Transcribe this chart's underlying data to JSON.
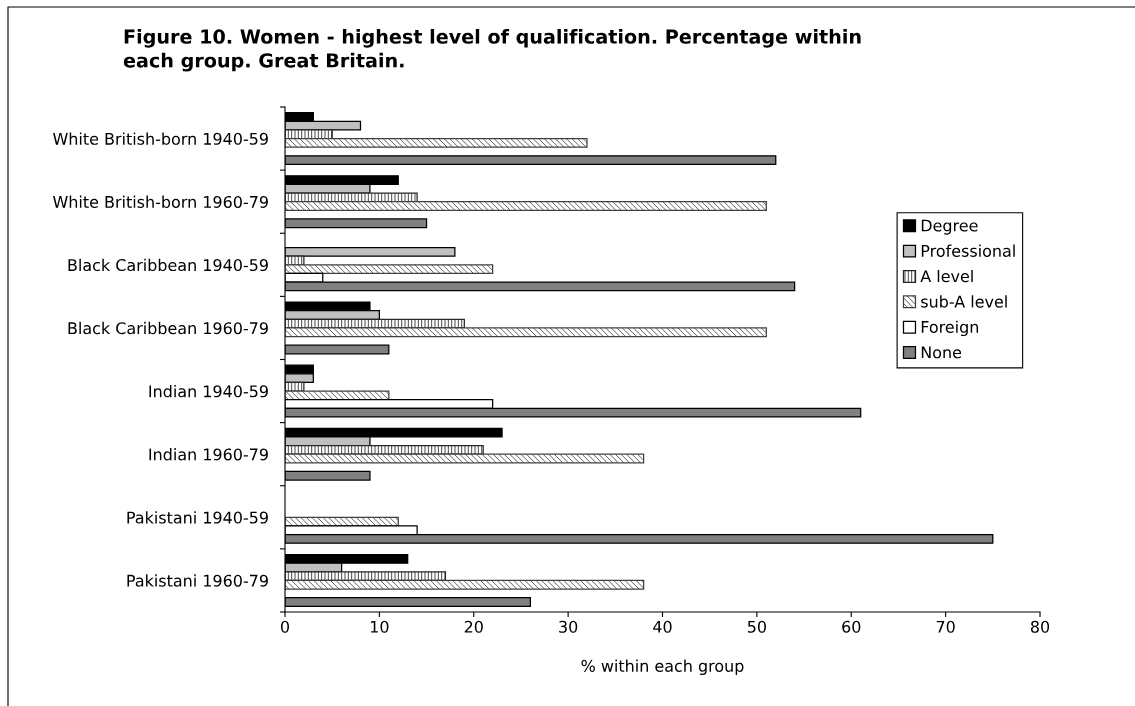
{
  "chart_data": {
    "type": "bar",
    "orientation": "horizontal",
    "title": "Figure 10. Women - highest level of qualification. Percentage within\neach group. Great Britain.",
    "xlabel": "% within each group",
    "categories": [
      "White British-born 1940-59",
      "White British-born 1960-79",
      "Black Caribbean 1940-59",
      "Black Caribbean 1960-79",
      "Indian 1940-59",
      "Indian 1960-79",
      "Pakistani 1940-59",
      "Pakistani 1960-79"
    ],
    "series": [
      {
        "name": "Degree",
        "color": "#000000",
        "values": [
          3,
          12,
          null,
          9,
          3,
          23,
          null,
          13
        ]
      },
      {
        "name": "Professional",
        "color": "#c0c0c0",
        "values": [
          8,
          9,
          18,
          10,
          3,
          9,
          null,
          6
        ]
      },
      {
        "name": "A level",
        "color": "#262626",
        "values": [
          5,
          14,
          2,
          19,
          2,
          21,
          null,
          17
        ]
      },
      {
        "name": "sub-A level",
        "color": "#404040",
        "values": [
          32,
          51,
          22,
          51,
          11,
          38,
          12,
          38
        ]
      },
      {
        "name": "Foreign",
        "color": "#ffffff",
        "values": [
          null,
          null,
          4,
          null,
          22,
          null,
          14,
          null
        ]
      },
      {
        "name": "None",
        "color": "#808080",
        "values": [
          52,
          15,
          54,
          11,
          61,
          9,
          75,
          26
        ]
      }
    ],
    "xlim": [
      0,
      80
    ],
    "xticks": [
      0,
      10,
      20,
      30,
      40,
      50,
      60,
      70,
      80
    ],
    "legend": "right"
  }
}
